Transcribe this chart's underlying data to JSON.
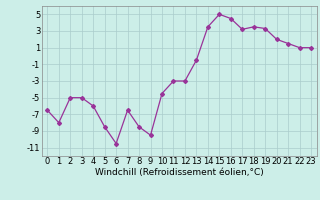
{
  "x": [
    0,
    1,
    2,
    3,
    4,
    5,
    6,
    7,
    8,
    9,
    10,
    11,
    12,
    13,
    14,
    15,
    16,
    17,
    18,
    19,
    20,
    21,
    22,
    23
  ],
  "y": [
    -6.5,
    -8.0,
    -5.0,
    -5.0,
    -6.0,
    -8.5,
    -10.5,
    -6.5,
    -8.5,
    -9.5,
    -4.5,
    -3.0,
    -3.0,
    -0.5,
    3.5,
    5.0,
    4.5,
    3.2,
    3.5,
    3.3,
    2.0,
    1.5,
    1.0,
    1.0
  ],
  "line_color": "#993399",
  "marker": "D",
  "markersize": 2.0,
  "linewidth": 0.9,
  "bg_color": "#cceee8",
  "grid_color": "#aacccc",
  "xlabel": "Windchill (Refroidissement éolien,°C)",
  "xlabel_fontsize": 6.5,
  "tick_fontsize": 6,
  "ylim": [
    -12,
    6
  ],
  "yticks": [
    -11,
    -9,
    -7,
    -5,
    -3,
    -1,
    1,
    3,
    5
  ],
  "xlim": [
    -0.5,
    23.5
  ],
  "xticks": [
    0,
    1,
    2,
    3,
    4,
    5,
    6,
    7,
    8,
    9,
    10,
    11,
    12,
    13,
    14,
    15,
    16,
    17,
    18,
    19,
    20,
    21,
    22,
    23
  ]
}
